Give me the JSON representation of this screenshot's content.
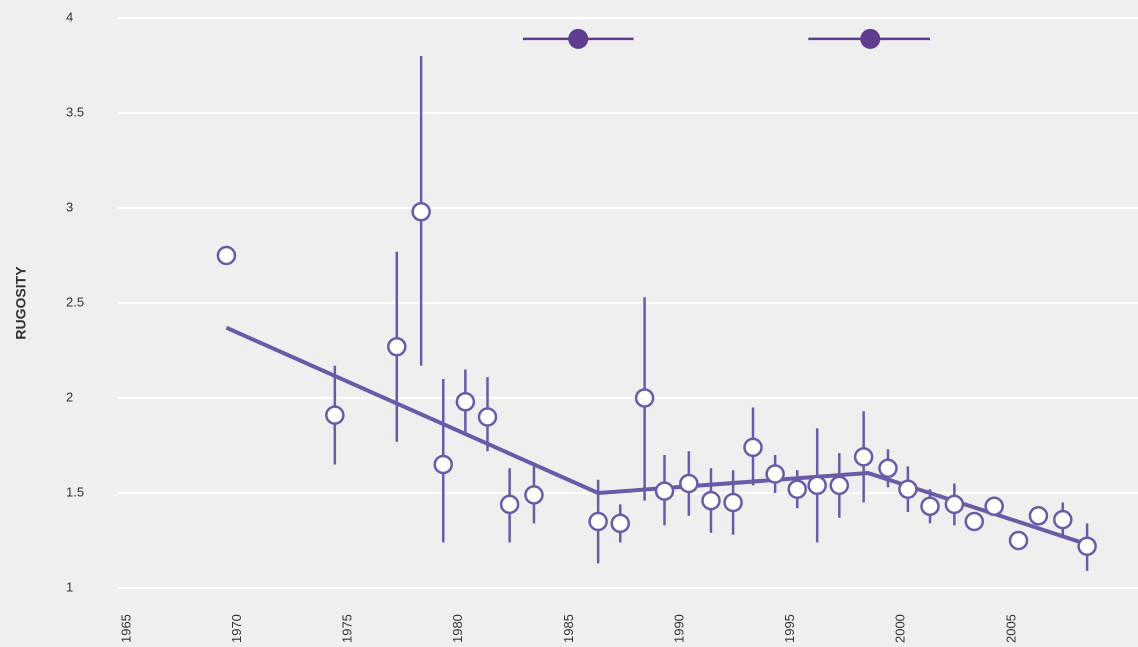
{
  "chart_data": {
    "type": "scatter",
    "y_label": "RUGOSITY",
    "xlim": [
      1964.6,
      2010.7
    ],
    "xticks": [
      1965,
      1970,
      1975,
      1980,
      1985,
      1990,
      1995,
      2000,
      2005
    ],
    "ylim": [
      1,
      4
    ],
    "yticks": [
      1,
      1.5,
      2,
      2.5,
      3,
      3.5,
      4
    ],
    "grid": true,
    "series": [
      {
        "color": "#6a5aa8",
        "x": [
          1969.5,
          1974.4,
          1977.2,
          1978.3,
          1979.3,
          1980.3,
          1981.3,
          1982.3,
          1983.4,
          1986.3,
          1987.3,
          1988.4,
          1989.3,
          1990.4,
          1991.4,
          1992.4,
          1993.3,
          1994.3,
          1995.3,
          1996.2,
          1997.2,
          1998.3,
          1999.4,
          2000.3,
          2001.3,
          2002.4,
          2003.3,
          2004.2,
          2005.3,
          2006.2,
          2007.3,
          2008.4
        ],
        "values": [
          2.75,
          1.91,
          2.27,
          2.98,
          1.65,
          1.98,
          1.9,
          1.44,
          1.49,
          1.35,
          1.34,
          2.0,
          1.51,
          1.55,
          1.46,
          1.45,
          1.74,
          1.6,
          1.52,
          1.54,
          1.54,
          1.69,
          1.63,
          1.52,
          1.43,
          1.44,
          1.35,
          1.43,
          1.25,
          1.38,
          1.36,
          1.22
        ],
        "lower": [
          null,
          1.65,
          1.77,
          2.17,
          1.24,
          1.82,
          1.72,
          1.24,
          1.34,
          1.13,
          1.24,
          1.46,
          1.33,
          1.38,
          1.29,
          1.28,
          1.54,
          1.5,
          1.42,
          1.24,
          1.37,
          1.45,
          1.53,
          1.4,
          1.34,
          1.33,
          1.3,
          null,
          null,
          null,
          1.28,
          1.09
        ],
        "upper": [
          null,
          2.17,
          2.77,
          3.8,
          2.1,
          2.15,
          2.11,
          1.63,
          1.66,
          1.57,
          1.44,
          2.53,
          1.7,
          1.72,
          1.63,
          1.62,
          1.95,
          1.7,
          1.62,
          1.84,
          1.71,
          1.93,
          1.73,
          1.64,
          1.52,
          1.55,
          1.4,
          null,
          null,
          null,
          1.45,
          1.34
        ]
      }
    ],
    "fit": {
      "color": "#6a5aa8",
      "x": [
        1969.5,
        1986.3,
        1998.5,
        2005,
        2008.4
      ],
      "values": [
        2.37,
        1.5,
        1.605,
        1.36,
        1.23
      ]
    },
    "breakpoints": {
      "color": "#5e3d8f",
      "x": [
        1985.4,
        1998.6
      ],
      "x_lower": [
        1982.9,
        1995.8
      ],
      "x_upper": [
        1987.9,
        2001.3
      ],
      "values": [
        3.89,
        3.89
      ]
    }
  }
}
